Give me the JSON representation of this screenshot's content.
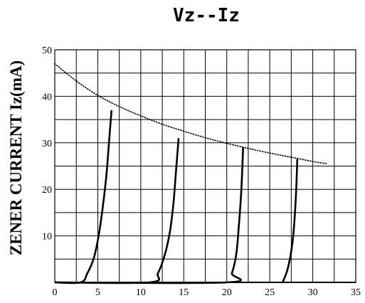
{
  "chart_data": {
    "type": "line",
    "title": "Vz--Iz",
    "xlabel": "",
    "ylabel": "ZENER CURRENT Iz(mA)",
    "xlim": [
      0,
      35
    ],
    "ylim": [
      0,
      50
    ],
    "x_ticks": [
      0,
      5,
      10,
      15,
      20,
      25,
      30,
      35
    ],
    "y_ticks": [
      10,
      20,
      30,
      40,
      50
    ],
    "x_tick_labels": [
      "0",
      "5",
      "10",
      "15",
      "20",
      "25",
      "30",
      "35"
    ],
    "y_tick_labels": [
      "10",
      "20",
      "30",
      "40",
      "50"
    ],
    "grid": true,
    "grid_x_step": 2.5,
    "grid_y_step": 5,
    "series": [
      {
        "style": "solid",
        "x": [
          0,
          3.0,
          3.8,
          4.5,
          5.0,
          5.5,
          6.0,
          6.3,
          6.6
        ],
        "y": [
          0,
          0,
          2,
          5,
          9,
          15,
          23,
          30,
          37
        ]
      },
      {
        "style": "solid",
        "x": [
          0,
          11.0,
          12.0,
          12.8,
          13.4,
          13.8,
          14.1,
          14.4
        ],
        "y": [
          0,
          0,
          2,
          6,
          11,
          17,
          24,
          31
        ]
      },
      {
        "style": "solid",
        "x": [
          0,
          20.0,
          20.6,
          21.1,
          21.4,
          21.7,
          21.9
        ],
        "y": [
          0,
          0,
          2,
          6,
          12,
          20,
          29
        ]
      },
      {
        "style": "solid",
        "x": [
          26.5,
          27.1,
          27.6,
          27.9,
          28.1,
          28.2
        ],
        "y": [
          0,
          3,
          8,
          14,
          21,
          26.5
        ]
      },
      {
        "style": "dotted",
        "x": [
          0,
          2.5,
          5,
          7.5,
          10,
          12.5,
          15,
          17.5,
          20,
          22.5,
          25,
          27.5,
          30,
          31.7
        ],
        "y": [
          47,
          43.3,
          40.2,
          37.8,
          35.8,
          34.0,
          32.5,
          31.1,
          29.9,
          28.8,
          27.8,
          26.9,
          26.0,
          25.5
        ]
      }
    ]
  }
}
